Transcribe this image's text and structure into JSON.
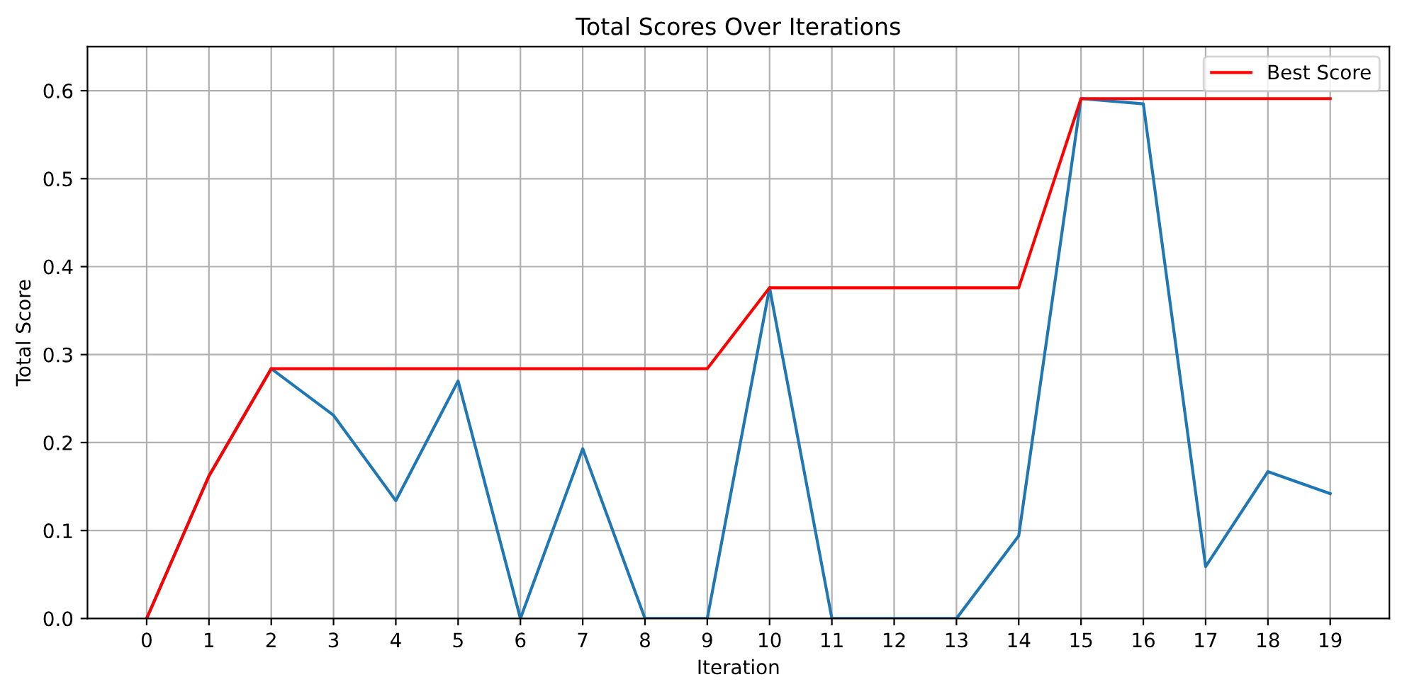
{
  "chart_data": {
    "type": "line",
    "title": "Total Scores Over Iterations",
    "xlabel": "Iteration",
    "ylabel": "Total Score",
    "x": [
      0,
      1,
      2,
      3,
      4,
      5,
      6,
      7,
      8,
      9,
      10,
      11,
      12,
      13,
      14,
      15,
      16,
      17,
      18,
      19
    ],
    "series": [
      {
        "color": "#1f77b4",
        "values": [
          0,
          0.162,
          0.284,
          0.231,
          0.134,
          0.27,
          0,
          0.193,
          0,
          0,
          0.376,
          0,
          0,
          0,
          0.094,
          0.591,
          0.585,
          0.059,
          0.167,
          0.142
        ]
      },
      {
        "name": "Best Score",
        "color": "#ff0000",
        "values": [
          0,
          0.162,
          0.284,
          0.284,
          0.284,
          0.284,
          0.284,
          0.284,
          0.284,
          0.284,
          0.376,
          0.376,
          0.376,
          0.376,
          0.376,
          0.591,
          0.591,
          0.591,
          0.591,
          0.591
        ]
      }
    ],
    "xlim": [
      -0.95,
      19.95
    ],
    "ylim": [
      0,
      0.65
    ],
    "xticks": [
      0,
      1,
      2,
      3,
      4,
      5,
      6,
      7,
      8,
      9,
      10,
      11,
      12,
      13,
      14,
      15,
      16,
      17,
      18,
      19
    ],
    "yticks": [
      {
        "value": 0,
        "label": "0.0"
      },
      {
        "value": 0.1,
        "label": "0.1"
      },
      {
        "value": 0.2,
        "label": "0.2"
      },
      {
        "value": 0.3,
        "label": "0.3"
      },
      {
        "value": 0.4,
        "label": "0.4"
      },
      {
        "value": 0.5,
        "label": "0.5"
      },
      {
        "value": 0.6,
        "label": "0.6"
      }
    ],
    "grid": true,
    "legend": "top right",
    "marker": "none",
    "line_style": "solid"
  }
}
